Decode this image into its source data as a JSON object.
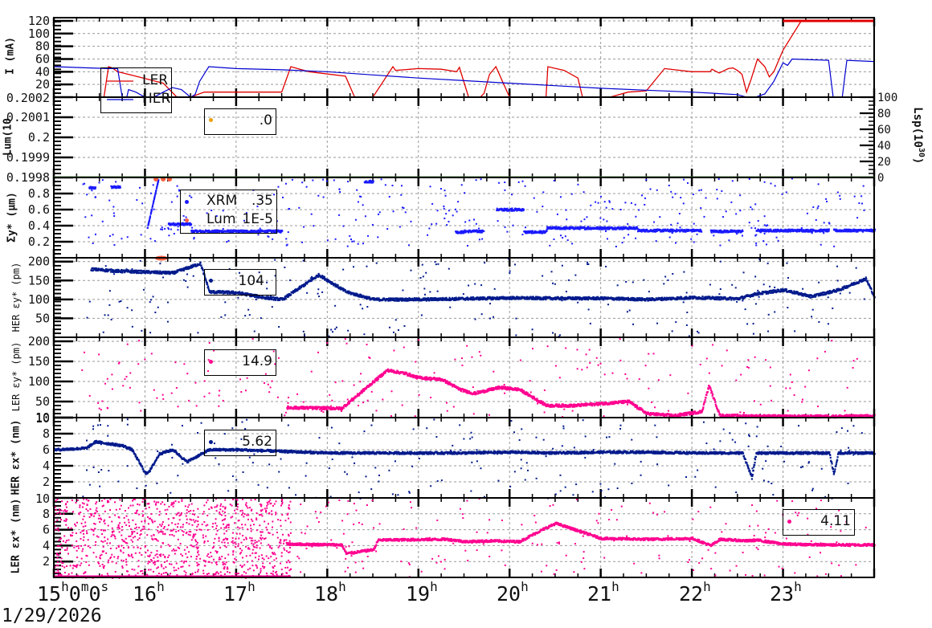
{
  "chart_data": [
    {
      "type": "line",
      "panel": "beam_current",
      "ylabel": "I (mA)",
      "yticks": [
        20,
        40,
        60,
        80,
        100,
        120
      ],
      "ylim": [
        0,
        125
      ],
      "legend": [
        "LER",
        "HER"
      ],
      "series": [
        {
          "name": "LER",
          "color": "#e00000",
          "x": [
            15.0,
            15.5,
            15.55,
            15.6,
            15.64,
            15.7,
            15.9,
            16.2,
            16.35,
            16.5,
            16.65,
            17.0,
            17.25,
            17.5,
            17.6,
            17.7,
            17.75,
            17.8,
            18.2,
            18.3,
            18.5,
            18.72,
            18.75,
            19.0,
            19.25,
            19.42,
            19.45,
            19.55,
            19.68,
            19.72,
            19.78,
            19.85,
            20.0,
            20.2,
            20.25,
            20.4,
            20.42,
            20.6,
            20.75,
            20.8,
            20.95,
            21.1,
            21.3,
            21.5,
            21.7,
            22.0,
            22.2,
            22.22,
            22.3,
            22.4,
            22.45,
            22.5,
            22.55,
            22.6,
            22.65,
            22.72,
            22.8,
            22.85,
            22.9,
            23.0,
            23.2,
            23.5,
            23.8,
            24.0
          ],
          "y": [
            0,
            0,
            0,
            48,
            46,
            40,
            33,
            22,
            0,
            0,
            8,
            8,
            8,
            8,
            48,
            44,
            42,
            40,
            33,
            0,
            0,
            48,
            42,
            45,
            44,
            40,
            47,
            0,
            0,
            6,
            36,
            48,
            0,
            0,
            0,
            0,
            48,
            42,
            30,
            0,
            0,
            0,
            8,
            10,
            45,
            40,
            40,
            44,
            38,
            45,
            46,
            42,
            36,
            8,
            28,
            60,
            48,
            32,
            40,
            74,
            120,
            120,
            120,
            120
          ]
        },
        {
          "name": "HER",
          "color": "#0000d0",
          "x": [
            15.0,
            15.4,
            15.6,
            15.7,
            15.75,
            15.8,
            15.82,
            15.9,
            16.0,
            16.1,
            16.2,
            16.3,
            16.4,
            16.5,
            16.55,
            16.6,
            16.7,
            17.0,
            17.5,
            18.0,
            18.5,
            19.0,
            19.5,
            20.0,
            20.5,
            21.0,
            21.5,
            22.0,
            22.5,
            22.6,
            22.62,
            22.7,
            22.8,
            22.9,
            23.0,
            23.05,
            23.1,
            23.5,
            23.55,
            23.6,
            23.65,
            23.7,
            24.0
          ],
          "y": [
            48,
            46,
            45,
            45,
            0,
            0,
            12,
            8,
            0,
            0,
            8,
            15,
            12,
            0,
            4,
            25,
            48,
            45,
            43,
            40,
            35,
            30,
            26,
            22,
            18,
            14,
            11,
            8,
            4,
            0,
            0,
            0,
            5,
            25,
            54,
            50,
            60,
            58,
            0,
            0,
            0,
            58,
            56
          ]
        }
      ]
    },
    {
      "type": "scatter",
      "panel": "luminosity",
      "ylabel": "Lum(10^..)",
      "yticks": [
        0.1998,
        0.1999,
        0.2,
        0.2001,
        0.2002
      ],
      "ylim": [
        0.1998,
        0.2002
      ],
      "y2label": "L_sp(10^30)",
      "y2ticks": [
        0,
        20,
        40,
        60,
        80,
        100
      ],
      "y2lim": [
        0,
        100
      ],
      "legend": [
        {
          "marker_color": "#e8a000",
          "value": ".0"
        }
      ],
      "series": []
    },
    {
      "type": "scatter",
      "panel": "sigma_y",
      "ylabel": "Σy* (μm)",
      "yticks": [
        0.2,
        0.4,
        0.6,
        0.8
      ],
      "ylim": [
        0,
        1.0
      ],
      "legend": [
        {
          "name": "XRM",
          "color": "#1a1aff",
          "value": ".35"
        },
        {
          "name": "Lum",
          "color": "#ff6040",
          "value": "1E-5"
        }
      ],
      "series": [
        {
          "name": "XRM",
          "color": "#1a1aff",
          "segments": [
            {
              "x0": 15.38,
              "x1": 15.45,
              "y": 0.87
            },
            {
              "x0": 15.62,
              "x1": 15.72,
              "y": 0.88
            },
            {
              "x0": 16.25,
              "x1": 16.5,
              "y": 0.42
            },
            {
              "x0": 16.5,
              "x1": 17.5,
              "y": 0.33
            },
            {
              "x0": 18.4,
              "x1": 18.5,
              "y": 0.95
            },
            {
              "x0": 19.4,
              "x1": 19.5,
              "y": 0.32
            },
            {
              "x0": 19.5,
              "x1": 19.7,
              "y": 0.33
            },
            {
              "x0": 19.85,
              "x1": 20.15,
              "y": 0.6
            },
            {
              "x0": 20.15,
              "x1": 20.4,
              "y": 0.32
            },
            {
              "x0": 20.4,
              "x1": 21.4,
              "y": 0.37
            },
            {
              "x0": 21.4,
              "x1": 22.1,
              "y": 0.34
            },
            {
              "x0": 22.2,
              "x1": 22.55,
              "y": 0.33
            },
            {
              "x0": 22.7,
              "x1": 23.5,
              "y": 0.34
            },
            {
              "x0": 23.55,
              "x1": 24.0,
              "y": 0.34
            }
          ]
        },
        {
          "name": "Lum",
          "color": "#ff6040",
          "x": [
            16.12,
            16.2,
            16.27
          ],
          "y": [
            1.0,
            1.0,
            1.0
          ]
        }
      ]
    },
    {
      "type": "scatter",
      "panel": "HER_emittance_y",
      "ylabel": "HER εy* (pm)",
      "yticks": [
        50,
        100,
        150,
        200
      ],
      "ylim": [
        0,
        210
      ],
      "legend": [
        {
          "color": "#001a8c",
          "value": "104"
        }
      ],
      "series": [
        {
          "name": "HER εy*",
          "color": "#001a8c",
          "x": [
            15.4,
            15.7,
            16.3,
            16.6,
            16.7,
            17.0,
            17.3,
            17.5,
            17.9,
            18.2,
            18.5,
            19.0,
            19.5,
            20.0,
            20.5,
            21.0,
            21.5,
            22.0,
            22.5,
            22.7,
            23.0,
            23.3,
            23.6,
            23.9,
            24.0
          ],
          "y": [
            180,
            175,
            170,
            195,
            120,
            118,
            105,
            100,
            165,
            120,
            100,
            100,
            102,
            104,
            103,
            103,
            100,
            105,
            102,
            115,
            125,
            108,
            125,
            155,
            105
          ]
        }
      ]
    },
    {
      "type": "scatter",
      "panel": "LER_emittance_y",
      "ylabel": "LER εy* (pm)",
      "yticks": [
        10,
        50,
        100,
        150,
        200
      ],
      "ylim": [
        10,
        210
      ],
      "legend": [
        {
          "color": "#ff0090",
          "value": "14.9"
        }
      ],
      "series": [
        {
          "name": "LER εy*",
          "color": "#ff0090",
          "x": [
            17.55,
            18.15,
            18.65,
            18.85,
            18.98,
            19.25,
            19.45,
            19.6,
            19.88,
            20.1,
            20.4,
            20.7,
            21.0,
            21.3,
            21.5,
            21.8,
            22.1,
            22.18,
            22.3,
            22.6,
            23.0,
            23.5,
            24.0
          ],
          "y": [
            35,
            33,
            128,
            120,
            110,
            105,
            80,
            70,
            85,
            80,
            40,
            40,
            45,
            50,
            20,
            15,
            25,
            90,
            15,
            14,
            13,
            13,
            14
          ]
        }
      ]
    },
    {
      "type": "scatter",
      "panel": "HER_emittance_x",
      "ylabel": "HER εx* (nm)",
      "yticks": [
        2,
        4,
        6,
        8,
        10
      ],
      "ylim": [
        0,
        10
      ],
      "legend": [
        {
          "color": "#001a8c",
          "value": "5.62"
        }
      ],
      "series": [
        {
          "name": "HER εx*",
          "color": "#001a8c",
          "x": [
            15.0,
            15.35,
            15.45,
            15.75,
            15.85,
            16.0,
            16.05,
            16.15,
            16.3,
            16.45,
            16.7,
            17.0,
            17.5,
            18.0,
            18.5,
            19.0,
            19.5,
            20.0,
            20.5,
            21.0,
            21.5,
            22.0,
            22.55,
            22.65,
            22.7,
            23.5,
            23.55,
            23.6,
            24.0
          ],
          "y": [
            6.0,
            6.2,
            7.0,
            6.5,
            6.0,
            3.0,
            3.5,
            5.5,
            6.0,
            4.5,
            6.0,
            6.0,
            5.8,
            5.6,
            5.6,
            5.6,
            5.6,
            5.7,
            5.6,
            5.7,
            5.7,
            5.6,
            5.6,
            2.5,
            5.6,
            5.6,
            3.0,
            5.6,
            5.6
          ]
        }
      ]
    },
    {
      "type": "scatter",
      "panel": "LER_emittance_x",
      "ylabel": "LER εx* (nm)",
      "yticks": [
        2,
        4,
        6,
        8,
        10
      ],
      "ylim": [
        0,
        10
      ],
      "legend": [
        {
          "color": "#ff0090",
          "value": "4.11"
        }
      ],
      "series": [
        {
          "name": "LER εx*",
          "color": "#ff0090",
          "x": [
            17.55,
            18.15,
            18.2,
            18.5,
            18.55,
            19.3,
            19.45,
            19.5,
            19.8,
            20.1,
            20.35,
            20.5,
            21.0,
            21.5,
            22.0,
            22.2,
            22.3,
            22.6,
            22.7,
            23.0,
            23.5,
            24.0
          ],
          "y": [
            4.2,
            4.1,
            3.0,
            3.5,
            4.7,
            4.8,
            4.6,
            4.5,
            4.6,
            4.5,
            6.0,
            6.8,
            4.9,
            4.8,
            4.9,
            4.0,
            4.8,
            4.6,
            4.7,
            4.2,
            4.1,
            4.1
          ]
        }
      ]
    },
    {
      "type": "axis",
      "xlabel_ticks": [
        "15h0m0s",
        "16h",
        "17h",
        "18h",
        "19h",
        "20h",
        "21h",
        "22h",
        "23h"
      ],
      "xlim_hours": [
        15.0,
        24.0
      ],
      "date": "1/29/2026",
      "grid": true
    }
  ],
  "axis": {
    "start_label": {
      "hh": "15",
      "h": "h",
      "mm": "0",
      "m": "m",
      "ss": "0",
      "s": "s"
    },
    "hours": [
      {
        "num": "16",
        "unit": "h"
      },
      {
        "num": "17",
        "unit": "h"
      },
      {
        "num": "18",
        "unit": "h"
      },
      {
        "num": "19",
        "unit": "h"
      },
      {
        "num": "20",
        "unit": "h"
      },
      {
        "num": "21",
        "unit": "h"
      },
      {
        "num": "22",
        "unit": "h"
      },
      {
        "num": "23",
        "unit": "h"
      }
    ],
    "date": "1/29/2026"
  },
  "panels": {
    "current": {
      "ylabel": "I (mA)",
      "ticks": [
        "120",
        "100",
        "80",
        "60",
        "40",
        "20"
      ],
      "legend": [
        "LER",
        "HER"
      ]
    },
    "lum": {
      "ylabel": "Lum(10",
      "ticks": [
        "0.2002",
        "0.2001",
        "0.2",
        "0.1999",
        "0.1998"
      ],
      "legend_value": ".0",
      "y2label": "Lsp(10",
      "y2sup": "30",
      "y2ticks": [
        "100",
        "80",
        "60",
        "40",
        "20",
        "0"
      ]
    },
    "sigma": {
      "ylabel": "Σy* (μm)",
      "ticks": [
        "0.8",
        "0.6",
        "0.4",
        "0.2"
      ],
      "legend": [
        {
          "name": "XRM",
          "value": ".35"
        },
        {
          "name": "Lum",
          "value": "1E-5"
        }
      ]
    },
    "her_ey": {
      "ylabel": "HER εy* (pm)",
      "ticks": [
        "200",
        "150",
        "100",
        "50"
      ],
      "legend_value": "104"
    },
    "ler_ey": {
      "ylabel": "LER εy* (pm)",
      "ticks": [
        "200",
        "150",
        "100",
        "50",
        "10"
      ],
      "legend_value": "14.9"
    },
    "her_ex": {
      "ylabel": "HER εx* (nm)",
      "ticks": [
        "10",
        "8",
        "6",
        "4",
        "2"
      ],
      "legend_value": "5.62"
    },
    "ler_ex": {
      "ylabel": "LER εx* (nm)",
      "ticks": [
        "10",
        "8",
        "6",
        "4",
        "2"
      ],
      "legend_value": "4.11"
    }
  },
  "colors": {
    "LER_current": "#e00000",
    "HER_current": "#0000d0",
    "XRM": "#1a1aff",
    "Lum": "#ff6040",
    "HER_points": "#001a8c",
    "LER_points": "#ff0090",
    "lum_marker": "#e8a000",
    "grid": "#999999"
  }
}
